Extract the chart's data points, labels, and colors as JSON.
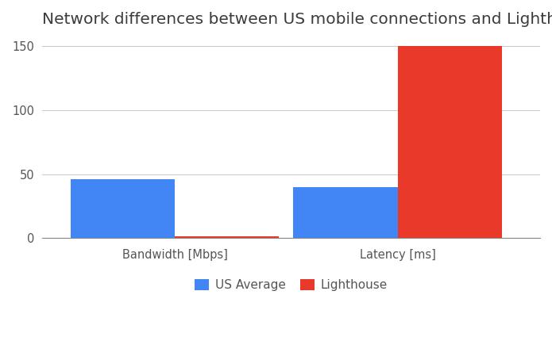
{
  "title": "Network differences between US mobile connections and Lighthouse tests",
  "groups": [
    "Bandwidth [Mbps]",
    "Latency [ms]"
  ],
  "series": [
    {
      "label": "US Average",
      "values": [
        46,
        40
      ],
      "color": "#4285F4"
    },
    {
      "label": "Lighthouse",
      "values": [
        1.6,
        150
      ],
      "color": "#E8392A"
    }
  ],
  "ylim": [
    0,
    155
  ],
  "yticks": [
    0,
    50,
    100,
    150
  ],
  "bar_width": 0.22,
  "background_color": "#ffffff",
  "title_fontsize": 14.5,
  "tick_label_fontsize": 10.5,
  "legend_fontsize": 11,
  "grid_color": "#cccccc",
  "title_color": "#3c3c3c",
  "tick_color": "#555555",
  "x_positions": [
    0.28,
    0.75
  ]
}
